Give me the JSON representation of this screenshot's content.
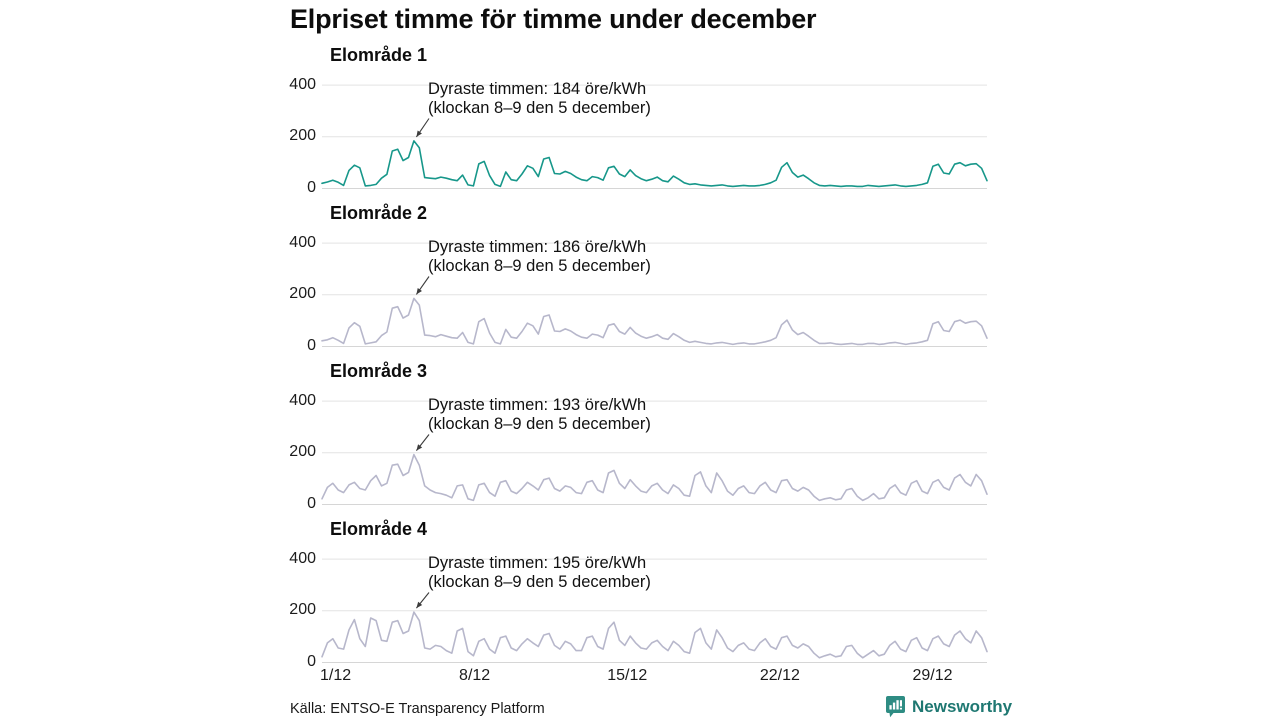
{
  "title": "Elpriset timme för timme under december",
  "source": "Källa: ENTSO-E Transparency Platform",
  "brand": {
    "name": "Newsworthy",
    "color": "#1f7872",
    "icon_color": "#2e8c83"
  },
  "colors": {
    "series_highlight": "#17978a",
    "series_muted": "#b7b7cb",
    "grid": "#e3e3e3",
    "zero_line": "#d6d6d6",
    "arrow": "#3c3c3c",
    "text": "#111111"
  },
  "axis": {
    "y_ticks": [
      0,
      200,
      400
    ],
    "x_ticks": [
      {
        "label": "1/12",
        "day": 1
      },
      {
        "label": "8/12",
        "day": 8
      },
      {
        "label": "15/12",
        "day": 15
      },
      {
        "label": "22/12",
        "day": 22
      },
      {
        "label": "29/12",
        "day": 29
      }
    ],
    "ylim": [
      0,
      450
    ],
    "grid": true
  },
  "chart_data": [
    {
      "type": "line",
      "title": "Elområde 1",
      "unit": "öre/kWh",
      "x_unit": "6-hour samples, 1–31 december",
      "annotation": {
        "line1": "Dyraste timmen: 184 öre/kWh",
        "line2": "(klockan 8–9 den 5 december)",
        "peak_value": 184,
        "peak_time": "8–9 den 5 december"
      },
      "highlight": true,
      "values": [
        20,
        25,
        32,
        24,
        12,
        70,
        90,
        80,
        10,
        12,
        16,
        40,
        55,
        145,
        152,
        108,
        120,
        184,
        158,
        42,
        40,
        38,
        44,
        40,
        34,
        30,
        52,
        14,
        10,
        95,
        105,
        50,
        16,
        8,
        64,
        34,
        30,
        56,
        88,
        78,
        46,
        114,
        120,
        58,
        56,
        66,
        58,
        44,
        34,
        30,
        46,
        42,
        32,
        80,
        86,
        56,
        46,
        72,
        50,
        38,
        30,
        36,
        44,
        30,
        26,
        48,
        36,
        22,
        16,
        18,
        14,
        12,
        10,
        12,
        14,
        10,
        8,
        10,
        12,
        10,
        10,
        12,
        16,
        22,
        32,
        82,
        100,
        62,
        44,
        52,
        38,
        22,
        12,
        10,
        12,
        10,
        8,
        10,
        10,
        8,
        8,
        12,
        10,
        8,
        10,
        12,
        14,
        10,
        8,
        10,
        12,
        16,
        22,
        86,
        94,
        60,
        56,
        94,
        100,
        88,
        94,
        96,
        78,
        30
      ]
    },
    {
      "type": "line",
      "title": "Elområde 2",
      "unit": "öre/kWh",
      "x_unit": "6-hour samples, 1–31 december",
      "annotation": {
        "line1": "Dyraste timmen: 186 öre/kWh",
        "line2": "(klockan 8–9 den 5 december)",
        "peak_value": 186,
        "peak_time": "8–9 den 5 december"
      },
      "highlight": false,
      "values": [
        22,
        26,
        34,
        24,
        12,
        72,
        92,
        78,
        10,
        14,
        18,
        42,
        56,
        148,
        154,
        110,
        122,
        186,
        160,
        44,
        42,
        38,
        46,
        40,
        34,
        32,
        54,
        16,
        10,
        96,
        108,
        52,
        16,
        10,
        66,
        36,
        32,
        58,
        90,
        80,
        48,
        116,
        122,
        60,
        58,
        68,
        60,
        46,
        36,
        32,
        48,
        44,
        34,
        82,
        88,
        58,
        48,
        74,
        52,
        40,
        32,
        38,
        46,
        32,
        28,
        50,
        38,
        24,
        16,
        20,
        16,
        12,
        10,
        14,
        16,
        12,
        8,
        12,
        14,
        10,
        10,
        14,
        18,
        24,
        34,
        84,
        102,
        64,
        46,
        54,
        40,
        24,
        12,
        12,
        14,
        10,
        8,
        10,
        12,
        8,
        8,
        12,
        12,
        8,
        10,
        14,
        16,
        12,
        8,
        12,
        14,
        18,
        24,
        88,
        96,
        62,
        58,
        96,
        102,
        90,
        96,
        98,
        80,
        32
      ]
    },
    {
      "type": "line",
      "title": "Elområde 3",
      "unit": "öre/kWh",
      "x_unit": "6-hour samples, 1–31 december",
      "annotation": {
        "line1": "Dyraste timmen: 193 öre/kWh",
        "line2": "(klockan 8–9 den 5 december)",
        "peak_value": 193,
        "peak_time": "8–9 den 5 december"
      },
      "highlight": false,
      "values": [
        22,
        66,
        82,
        56,
        46,
        76,
        86,
        62,
        56,
        92,
        112,
        72,
        82,
        152,
        156,
        112,
        124,
        193,
        152,
        72,
        56,
        46,
        42,
        36,
        26,
        72,
        76,
        22,
        16,
        76,
        82,
        46,
        32,
        86,
        92,
        52,
        42,
        62,
        86,
        72,
        56,
        96,
        102,
        62,
        52,
        72,
        66,
        46,
        42,
        86,
        92,
        56,
        46,
        122,
        132,
        82,
        62,
        96,
        72,
        52,
        46,
        72,
        82,
        56,
        42,
        76,
        62,
        36,
        32,
        112,
        126,
        72,
        46,
        122,
        92,
        52,
        36,
        62,
        72,
        46,
        42,
        72,
        86,
        56,
        46,
        92,
        96,
        62,
        52,
        66,
        56,
        32,
        16,
        22,
        26,
        18,
        22,
        56,
        62,
        32,
        16,
        26,
        42,
        22,
        26,
        62,
        76,
        46,
        36,
        82,
        92,
        52,
        42,
        86,
        96,
        66,
        56,
        102,
        116,
        86,
        72,
        116,
        92,
        40
      ]
    },
    {
      "type": "line",
      "title": "Elområde 4",
      "unit": "öre/kWh",
      "x_unit": "6-hour samples, 1–31 december",
      "annotation": {
        "line1": "Dyraste timmen: 195 öre/kWh",
        "line2": "(klockan 8–9 den 5 december)",
        "peak_value": 195,
        "peak_time": "8–9 den 5 december"
      },
      "highlight": false,
      "values": [
        22,
        76,
        92,
        56,
        52,
        126,
        166,
        92,
        62,
        172,
        162,
        86,
        82,
        156,
        162,
        112,
        122,
        195,
        162,
        56,
        52,
        66,
        62,
        46,
        36,
        122,
        132,
        42,
        26,
        82,
        92,
        52,
        36,
        96,
        102,
        56,
        46,
        72,
        92,
        76,
        62,
        106,
        112,
        66,
        52,
        82,
        72,
        46,
        46,
        96,
        102,
        62,
        52,
        132,
        156,
        86,
        66,
        102,
        76,
        56,
        52,
        76,
        86,
        62,
        46,
        82,
        66,
        42,
        36,
        116,
        132,
        76,
        52,
        126,
        96,
        56,
        42,
        66,
        76,
        52,
        46,
        76,
        92,
        62,
        52,
        96,
        102,
        66,
        56,
        72,
        62,
        36,
        18,
        26,
        32,
        22,
        26,
        62,
        66,
        36,
        18,
        32,
        46,
        26,
        32,
        66,
        82,
        52,
        42,
        86,
        96,
        56,
        46,
        92,
        102,
        72,
        62,
        106,
        122,
        92,
        76,
        122,
        96,
        42
      ]
    }
  ]
}
